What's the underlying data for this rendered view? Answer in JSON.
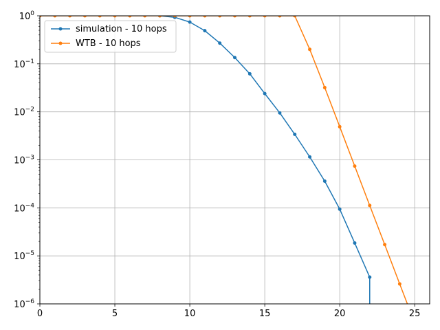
{
  "chart_data": {
    "type": "line",
    "title": "",
    "xlabel": "",
    "ylabel": "",
    "yscale": "log",
    "xlim": [
      0,
      26
    ],
    "ylim": [
      1e-06,
      1
    ],
    "grid": true,
    "legend_position": "top-left",
    "x_ticks": [
      0,
      5,
      10,
      15,
      20,
      25
    ],
    "x_tick_labels": [
      "0",
      "5",
      "10",
      "15",
      "20",
      "25"
    ],
    "y_ticks": [
      1e-06,
      1e-05,
      0.0001,
      0.001,
      0.01,
      0.1,
      1
    ],
    "y_tick_bases": [
      "10",
      "10",
      "10",
      "10",
      "10",
      "10",
      "10"
    ],
    "y_tick_exps": [
      "−6",
      "−5",
      "−4",
      "−3",
      "−2",
      "−1",
      "0"
    ],
    "series": [
      {
        "name": "simulation - 10 hops",
        "color": "#1f77b4",
        "x": [
          8,
          9,
          10,
          11,
          12,
          13,
          14,
          15,
          16,
          17,
          18,
          19,
          20,
          21,
          22
        ],
        "y": [
          1.0,
          0.93,
          0.74,
          0.49,
          0.27,
          0.135,
          0.062,
          0.024,
          0.0095,
          0.0034,
          0.00115,
          0.00036,
          9.4e-05,
          1.85e-05,
          3.6e-06
        ],
        "drop_to_zero_after": true
      },
      {
        "name": "WTB - 10 hops",
        "color": "#ff7f0e",
        "x": [
          0,
          1,
          2,
          3,
          4,
          5,
          6,
          7,
          8,
          9,
          10,
          11,
          12,
          13,
          14,
          15,
          16,
          17,
          18,
          19,
          20,
          21,
          22,
          23,
          24,
          25
        ],
        "y": [
          1,
          1,
          1,
          1,
          1,
          1,
          1,
          1,
          1,
          1,
          1,
          1,
          1,
          1,
          1,
          1,
          1,
          1,
          0.2,
          0.032,
          0.0049,
          0.00074,
          0.000112,
          1.72e-05,
          2.6e-06,
          4e-07
        ]
      }
    ]
  }
}
